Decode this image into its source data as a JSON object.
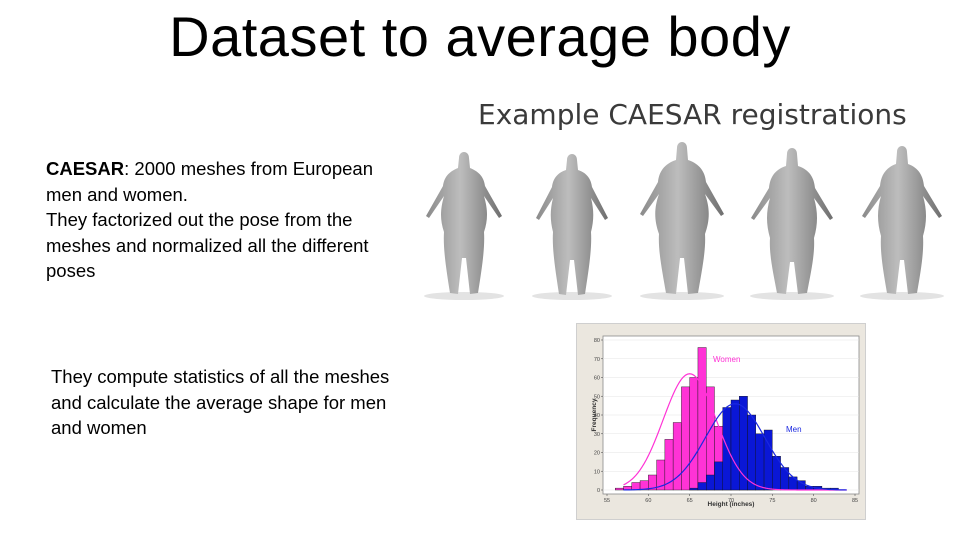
{
  "slide": {
    "title": "Dataset to average body",
    "caesar_bold": "CAESAR",
    "caesar_rest": ": 2000 meshes from European men and women.",
    "pose_text": "They factorized out the pose from the meshes and normalized all the different poses",
    "stats_text": "They compute statistics of all the meshes and calculate the average shape for men and women"
  },
  "registrations": {
    "caption": "Example CAESAR registrations",
    "figures": [
      "body-mesh",
      "body-mesh",
      "body-mesh",
      "body-mesh",
      "body-mesh"
    ]
  },
  "chart_data": {
    "type": "bar",
    "xlabel": "Height (inches)",
    "ylabel": "Frequency",
    "xlim": [
      55,
      85
    ],
    "ylim": [
      0,
      80
    ],
    "xticks": [
      55,
      60,
      65,
      70,
      75,
      80,
      85
    ],
    "yticks": [
      0,
      10,
      20,
      30,
      40,
      50,
      60,
      70,
      80
    ],
    "bin_width": 1,
    "bin_starts": [
      56,
      57,
      58,
      59,
      60,
      61,
      62,
      63,
      64,
      65,
      66,
      67,
      68,
      69,
      70,
      71,
      72,
      73,
      74,
      75,
      76,
      77,
      78,
      79,
      80,
      81,
      82,
      83
    ],
    "series": [
      {
        "name": "Women",
        "color": "#ff33d6",
        "values": [
          1,
          2,
          4,
          5,
          8,
          16,
          27,
          36,
          55,
          60,
          76,
          55,
          34,
          23,
          12,
          6,
          4,
          2,
          1,
          0,
          0,
          0,
          0,
          0,
          0,
          0,
          0,
          0
        ]
      },
      {
        "name": "Men",
        "color": "#0a17d6",
        "values": [
          0,
          0,
          0,
          0,
          0,
          0,
          0,
          0,
          0,
          1,
          4,
          8,
          15,
          44,
          48,
          50,
          40,
          30,
          32,
          18,
          12,
          7,
          5,
          2,
          2,
          1,
          1,
          0
        ]
      }
    ],
    "curves": [
      {
        "series": "Women",
        "color": "#ff33d6",
        "mean": 65,
        "sd": 3.2,
        "peak": 62
      },
      {
        "series": "Men",
        "color": "#1a28e0",
        "mean": 70.5,
        "sd": 3.6,
        "peak": 46
      }
    ],
    "legend_placement": "inline-labels"
  }
}
